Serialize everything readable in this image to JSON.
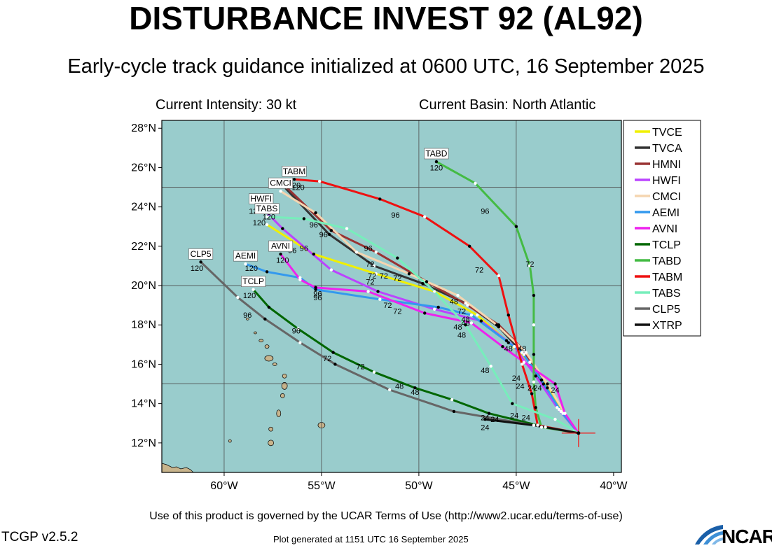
{
  "header": {
    "title": "DISTURBANCE INVEST 92 (AL92)",
    "subtitle": "Early-cycle track guidance initialized at 0600 UTC, 16 September 2025",
    "intensity": "Current Intensity: 30 kt",
    "basin": "Current Basin: North Atlantic"
  },
  "footer": {
    "terms": "Use of this product is governed by the UCAR Terms of Use (http://www2.ucar.edu/terms-of-use)",
    "version": "TCGP v2.5.2",
    "generated": "Plot generated at 1151 UTC   16 September 2025",
    "logo_text": "NCAR"
  },
  "colors": {
    "ocean": "#99cccc",
    "land": "#c8b48c",
    "grid": "#4d4d4d"
  },
  "chart_data": {
    "type": "line",
    "title": "DISTURBANCE INVEST 92 (AL92)",
    "xlim": [
      -63.2,
      -39.6
    ],
    "ylim": [
      10.5,
      28.4
    ],
    "xticks": [
      {
        "value": -60,
        "label": "60°W"
      },
      {
        "value": -55,
        "label": "55°W"
      },
      {
        "value": -50,
        "label": "50°W"
      },
      {
        "value": -45,
        "label": "45°W"
      },
      {
        "value": -40,
        "label": "40°W"
      }
    ],
    "yticks": [
      {
        "value": 12,
        "label": "12°N"
      },
      {
        "value": 14,
        "label": "14°N"
      },
      {
        "value": 16,
        "label": "16°N"
      },
      {
        "value": 18,
        "label": "18°N"
      },
      {
        "value": 20,
        "label": "20°N"
      },
      {
        "value": 22,
        "label": "22°N"
      },
      {
        "value": 24,
        "label": "24°N"
      },
      {
        "value": 26,
        "label": "26°N"
      },
      {
        "value": 28,
        "label": "28°N"
      }
    ],
    "grid": true,
    "legend_position": "right",
    "initial_position": [
      -41.8,
      12.5
    ],
    "series": [
      {
        "name": "TVCE",
        "color": "#f0f000",
        "end_box": false,
        "points": [
          [
            -41.8,
            12.5
          ],
          [
            -42.6,
            13.5
          ],
          [
            -43.4,
            14.8
          ],
          [
            -44.3,
            16.1
          ],
          [
            -45.5,
            17.2
          ],
          [
            -47.0,
            18.5
          ],
          [
            -49.2,
            19.7
          ],
          [
            -52.2,
            20.6
          ],
          [
            -55.4,
            21.6
          ],
          [
            -57.8,
            23.1
          ]
        ]
      },
      {
        "name": "TVCA",
        "color": "#333333",
        "end_box": false,
        "points": [
          [
            -41.8,
            12.5
          ],
          [
            -42.7,
            13.6
          ],
          [
            -43.6,
            15.0
          ],
          [
            -44.6,
            16.5
          ],
          [
            -45.9,
            17.9
          ],
          [
            -47.6,
            19.1
          ],
          [
            -49.8,
            20.1
          ],
          [
            -52.3,
            21.0
          ],
          [
            -54.6,
            22.6
          ],
          [
            -56.9,
            25.0
          ]
        ]
      },
      {
        "name": "HMNI",
        "color": "#993333",
        "end_box": false,
        "points": [
          [
            -41.8,
            12.5
          ],
          [
            -42.8,
            13.7
          ],
          [
            -43.7,
            15.2
          ],
          [
            -44.6,
            16.7
          ],
          [
            -45.9,
            18.0
          ],
          [
            -47.5,
            19.0
          ],
          [
            -49.6,
            20.2
          ],
          [
            -52.2,
            21.7
          ],
          [
            -54.5,
            22.8
          ],
          [
            -56.8,
            25.0
          ]
        ]
      },
      {
        "name": "HWFI",
        "color": "#bb44ff",
        "end_box": true,
        "end_label": "HWFI",
        "points": [
          [
            -41.8,
            12.5
          ],
          [
            -42.9,
            13.8
          ],
          [
            -44.0,
            15.4
          ],
          [
            -45.1,
            16.9
          ],
          [
            -46.8,
            18.2
          ],
          [
            -49.2,
            18.8
          ],
          [
            -52.1,
            19.7
          ],
          [
            -54.5,
            20.8
          ],
          [
            -57.0,
            22.9
          ],
          [
            -58.1,
            24.0
          ]
        ]
      },
      {
        "name": "CMCI",
        "color": "#f5d5b0",
        "end_box": true,
        "end_label": "CMCI",
        "points": [
          [
            -41.8,
            12.5
          ],
          [
            -42.5,
            13.5
          ],
          [
            -43.4,
            15.0
          ],
          [
            -44.5,
            16.6
          ],
          [
            -46.0,
            18.0
          ],
          [
            -48.0,
            19.5
          ],
          [
            -50.5,
            20.6
          ],
          [
            -53.2,
            21.7
          ],
          [
            -55.3,
            23.7
          ],
          [
            -57.1,
            24.8
          ]
        ]
      },
      {
        "name": "AEMI",
        "color": "#3399ee",
        "end_box": true,
        "end_label": "AEMI",
        "points": [
          [
            -41.8,
            12.5
          ],
          [
            -42.7,
            13.6
          ],
          [
            -43.7,
            15.2
          ],
          [
            -44.7,
            16.6
          ],
          [
            -45.4,
            17.1
          ],
          [
            -47.3,
            18.5
          ],
          [
            -49.0,
            18.9
          ],
          [
            -52.0,
            19.3
          ],
          [
            -55.3,
            19.8
          ],
          [
            -56.1,
            20.4
          ],
          [
            -57.8,
            20.7
          ],
          [
            -58.9,
            21.1
          ]
        ]
      },
      {
        "name": "AVNI",
        "color": "#ee22ee",
        "end_box": true,
        "end_label": "AVNI",
        "points": [
          [
            -41.8,
            12.5
          ],
          [
            -42.5,
            13.5
          ],
          [
            -43.0,
            15.0
          ],
          [
            -44.6,
            16.1
          ],
          [
            -45.7,
            16.9
          ],
          [
            -47.3,
            18.1
          ],
          [
            -49.7,
            18.6
          ],
          [
            -52.6,
            19.7
          ],
          [
            -55.3,
            19.9
          ],
          [
            -56.1,
            20.3
          ],
          [
            -57.1,
            21.6
          ]
        ]
      },
      {
        "name": "TCLP",
        "color": "#006600",
        "end_box": true,
        "end_label": "TCLP",
        "points": [
          [
            -41.8,
            12.5
          ],
          [
            -43.5,
            12.8
          ],
          [
            -46.4,
            13.5
          ],
          [
            -48.3,
            14.2
          ],
          [
            -50.2,
            14.8
          ],
          [
            -52.3,
            15.6
          ],
          [
            -54.4,
            16.6
          ],
          [
            -56.2,
            17.8
          ],
          [
            -57.7,
            18.9
          ],
          [
            -58.5,
            19.8
          ]
        ]
      },
      {
        "name": "TABD",
        "color": "#44bb44",
        "end_box": true,
        "end_label": "TABD",
        "points": [
          [
            -41.8,
            12.5
          ],
          [
            -43.7,
            12.8
          ],
          [
            -44.0,
            13.8
          ],
          [
            -44.1,
            15.1
          ],
          [
            -44.1,
            16.5
          ],
          [
            -44.1,
            18.0
          ],
          [
            -44.1,
            19.5
          ],
          [
            -44.3,
            21.0
          ],
          [
            -45.0,
            23.0
          ],
          [
            -47.1,
            25.2
          ],
          [
            -49.1,
            26.3
          ]
        ]
      },
      {
        "name": "TABM",
        "color": "#ee1111",
        "end_box": true,
        "end_label": "TABM",
        "points": [
          [
            -41.8,
            12.5
          ],
          [
            -43.9,
            12.9
          ],
          [
            -44.2,
            14.5
          ],
          [
            -44.7,
            16.0
          ],
          [
            -45.4,
            18.5
          ],
          [
            -45.9,
            20.5
          ],
          [
            -47.4,
            22.0
          ],
          [
            -49.7,
            23.5
          ],
          [
            -52.0,
            24.4
          ],
          [
            -55.1,
            25.3
          ],
          [
            -56.4,
            25.4
          ]
        ]
      },
      {
        "name": "TABS",
        "color": "#77eebb",
        "end_box": true,
        "end_label": "TABS",
        "points": [
          [
            -41.8,
            12.5
          ],
          [
            -43.0,
            13.2
          ],
          [
            -45.2,
            14.0
          ],
          [
            -46.3,
            15.9
          ],
          [
            -47.6,
            18.0
          ],
          [
            -49.2,
            19.7
          ],
          [
            -51.1,
            21.4
          ],
          [
            -53.7,
            22.9
          ],
          [
            -55.9,
            23.4
          ],
          [
            -57.8,
            23.5
          ]
        ]
      },
      {
        "name": "CLP5",
        "color": "#666666",
        "end_box": true,
        "end_label": "CLP5",
        "points": [
          [
            -41.8,
            12.5
          ],
          [
            -44.1,
            12.9
          ],
          [
            -48.2,
            13.6
          ],
          [
            -51.5,
            14.7
          ],
          [
            -54.3,
            16.0
          ],
          [
            -56.1,
            17.1
          ],
          [
            -57.9,
            18.3
          ],
          [
            -59.3,
            19.4
          ],
          [
            -61.2,
            21.2
          ]
        ]
      },
      {
        "name": "XTRP",
        "color": "#111111",
        "end_box": false,
        "points": [
          [
            -41.8,
            12.5
          ],
          [
            -44.1,
            12.9
          ],
          [
            -46.6,
            13.2
          ]
        ]
      }
    ],
    "annotations": [
      {
        "text": "120",
        "x": -57.1,
        "y": 25.1
      },
      {
        "text": "120",
        "x": -56.2,
        "y": 25.0
      },
      {
        "text": "120",
        "x": -56.4,
        "y": 25.1
      },
      {
        "text": "120",
        "x": -58.4,
        "y": 23.8
      },
      {
        "text": "120",
        "x": -57.7,
        "y": 23.5
      },
      {
        "text": "120",
        "x": -58.2,
        "y": 23.2
      },
      {
        "text": "120",
        "x": -58.6,
        "y": 20.9
      },
      {
        "text": "120",
        "x": -57.0,
        "y": 21.3
      },
      {
        "text": "120",
        "x": -58.7,
        "y": 19.5
      },
      {
        "text": "120",
        "x": -61.4,
        "y": 20.9
      },
      {
        "text": "120",
        "x": -49.1,
        "y": 26.0
      },
      {
        "text": "96",
        "x": -46.6,
        "y": 23.8
      },
      {
        "text": "96",
        "x": -51.2,
        "y": 23.6
      },
      {
        "text": "96",
        "x": -55.4,
        "y": 23.1
      },
      {
        "text": "96",
        "x": -54.9,
        "y": 22.6
      },
      {
        "text": "96",
        "x": -52.6,
        "y": 21.9
      },
      {
        "text": "96",
        "x": -56.5,
        "y": 21.8
      },
      {
        "text": "96",
        "x": -55.9,
        "y": 21.9
      },
      {
        "text": "96",
        "x": -55.2,
        "y": 19.6
      },
      {
        "text": "96",
        "x": -55.2,
        "y": 19.4
      },
      {
        "text": "96",
        "x": -58.8,
        "y": 18.5
      },
      {
        "text": "96",
        "x": -56.3,
        "y": 17.7
      },
      {
        "text": "72",
        "x": -44.3,
        "y": 21.1
      },
      {
        "text": "72",
        "x": -46.9,
        "y": 20.8
      },
      {
        "text": "72",
        "x": -52.5,
        "y": 21.1
      },
      {
        "text": "72",
        "x": -52.4,
        "y": 20.5
      },
      {
        "text": "72",
        "x": -51.8,
        "y": 20.5
      },
      {
        "text": "72",
        "x": -51.1,
        "y": 20.4
      },
      {
        "text": "72",
        "x": -52.5,
        "y": 20.2
      },
      {
        "text": "72",
        "x": -51.6,
        "y": 19.0
      },
      {
        "text": "72",
        "x": -51.1,
        "y": 18.7
      },
      {
        "text": "72",
        "x": -47.8,
        "y": 18.7
      },
      {
        "text": "72",
        "x": -54.7,
        "y": 16.3
      },
      {
        "text": "72",
        "x": -53.0,
        "y": 15.9
      },
      {
        "text": "48",
        "x": -48.2,
        "y": 19.2
      },
      {
        "text": "48",
        "x": -47.6,
        "y": 18.3
      },
      {
        "text": "48",
        "x": -47.6,
        "y": 18.1
      },
      {
        "text": "48",
        "x": -48.0,
        "y": 17.9
      },
      {
        "text": "48",
        "x": -47.8,
        "y": 17.5
      },
      {
        "text": "48",
        "x": -44.7,
        "y": 16.8
      },
      {
        "text": "48",
        "x": -45.4,
        "y": 16.8
      },
      {
        "text": "48",
        "x": -46.6,
        "y": 15.7
      },
      {
        "text": "48",
        "x": -51.0,
        "y": 14.9
      },
      {
        "text": "48",
        "x": -50.2,
        "y": 14.6
      },
      {
        "text": "24",
        "x": -45.0,
        "y": 15.3
      },
      {
        "text": "24",
        "x": -44.8,
        "y": 14.9
      },
      {
        "text": "24",
        "x": -44.2,
        "y": 14.8
      },
      {
        "text": "24",
        "x": -43.9,
        "y": 14.8
      },
      {
        "text": "24",
        "x": -43.0,
        "y": 14.7
      },
      {
        "text": "24",
        "x": -45.1,
        "y": 13.4
      },
      {
        "text": "24",
        "x": -44.5,
        "y": 13.3
      },
      {
        "text": "24",
        "x": -46.6,
        "y": 13.3
      },
      {
        "text": "24",
        "x": -46.1,
        "y": 13.2
      },
      {
        "text": "24",
        "x": -46.6,
        "y": 12.8
      }
    ]
  }
}
